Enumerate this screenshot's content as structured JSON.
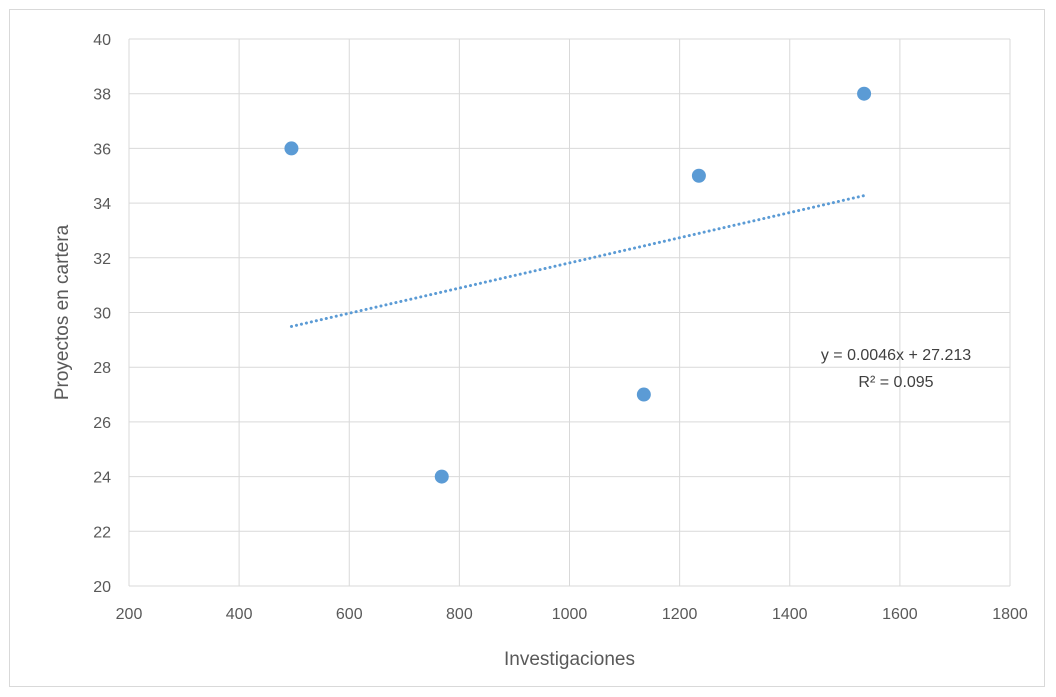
{
  "chart_data": {
    "type": "scatter",
    "title": "",
    "xlabel": "Investigaciones",
    "ylabel": "Proyectos en cartera",
    "xlim": [
      200,
      1800
    ],
    "ylim": [
      20,
      40
    ],
    "x_ticks": [
      200,
      400,
      600,
      800,
      1000,
      1200,
      1400,
      1600,
      1800
    ],
    "y_ticks": [
      20,
      22,
      24,
      26,
      28,
      30,
      32,
      34,
      36,
      38,
      40
    ],
    "grid": true,
    "legend": "none",
    "series": [
      {
        "x": [
          495,
          768,
          1135,
          1235,
          1535
        ],
        "y": [
          36,
          24,
          27,
          35,
          38
        ],
        "color": "#5b9bd5"
      }
    ],
    "trendline": {
      "type": "linear",
      "slope": 0.0046,
      "intercept": 27.213,
      "x_range": [
        495,
        1535
      ],
      "color": "#5b9bd5",
      "style": "dotted",
      "equation_label": "y = 0.0046x + 27.213",
      "r2_label": "R² = 0.095"
    }
  }
}
